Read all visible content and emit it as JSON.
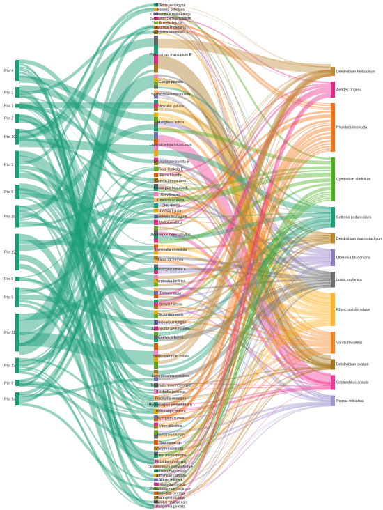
{
  "diagram": {
    "type": "sankey",
    "colors": {
      "plot": "#1b9e77",
      "link_default": "#1b9e77",
      "link_palette": [
        "#1b9e77",
        "#e6ab02",
        "#7570b3",
        "#e7298a",
        "#66a61e",
        "#d95f02",
        "#a6761d",
        "#666666",
        "#f781bf",
        "#fdae61"
      ]
    },
    "plots": [
      {
        "label": "Plot 4",
        "size": 3.2
      },
      {
        "label": "Plot 3",
        "size": 1.6
      },
      {
        "label": "Plot 1",
        "size": 0.6
      },
      {
        "label": "Plot 2",
        "size": 1.3
      },
      {
        "label": "Plot 10",
        "size": 2.4
      },
      {
        "label": "Plot 7",
        "size": 4.2
      },
      {
        "label": "Plot 6",
        "size": 2.2
      },
      {
        "label": "Plot 15",
        "size": 3.4
      },
      {
        "label": "Plot 12",
        "size": 5.6
      },
      {
        "label": "Plot 9",
        "size": 0.7
      },
      {
        "label": "Plot 5",
        "size": 3.0
      },
      {
        "label": "Plot 11",
        "size": 5.8
      },
      {
        "label": "Plot 13",
        "size": 2.4
      },
      {
        "label": "Plot 8",
        "size": 1.0
      },
      {
        "label": "Plot 14",
        "size": 2.0
      }
    ],
    "trees": [
      {
        "label": "Dillenia pentagyna",
        "size": 0.3
      },
      {
        "label": "Alstonia scholaris",
        "size": 0.3
      },
      {
        "label": "Chionanthus mala-elengi",
        "size": 0.3
      },
      {
        "label": "Syzygium caryophyllatum",
        "size": 0.3
      },
      {
        "label": "Bridelia retusa",
        "size": 0.3
      },
      {
        "label": "Agorosa lindleyana",
        "size": 0.3
      },
      {
        "label": "Holigarna arnottiana E",
        "size": 0.4
      },
      {
        "label": "Pterocarpus marsupium E",
        "size": 3.6
      },
      {
        "label": "Garuga pinnata",
        "size": 1.4
      },
      {
        "label": "Spathodea campanulata",
        "size": 0.8
      },
      {
        "label": "Sterculia guttata",
        "size": 1.1
      },
      {
        "label": "Mangifera indica",
        "size": 1.8
      },
      {
        "label": "Lagerstroemia microcarpa",
        "size": 2.3
      },
      {
        "label": "Terminalia paniculata E",
        "size": 0.7
      },
      {
        "label": "Ficus tsjakela E",
        "size": 0.5
      },
      {
        "label": "Ficus hispida",
        "size": 0.4
      },
      {
        "label": "Careya integerrima",
        "size": 0.4
      },
      {
        "label": "Artocarpus hirsutus E",
        "size": 0.7
      },
      {
        "label": "Grevillea sp.",
        "size": 0.4
      },
      {
        "label": "Gmelina arborea",
        "size": 0.4
      },
      {
        "label": "Olea dioica",
        "size": 0.4
      },
      {
        "label": "Cassia fistula",
        "size": 0.4
      },
      {
        "label": "Swietenia mahagoni",
        "size": 0.4
      },
      {
        "label": "Mallotus albus",
        "size": 0.5
      },
      {
        "label": "Artocarpus heterophyllus",
        "size": 1.6
      },
      {
        "label": "Terminalia crenulata",
        "size": 1.0
      },
      {
        "label": "Ficus racemosa",
        "size": 0.7
      },
      {
        "label": "Dalbergia latifolia E",
        "size": 0.9
      },
      {
        "label": "Terminalia bellirica",
        "size": 1.1
      },
      {
        "label": "Delonix regia",
        "size": 1.0
      },
      {
        "label": "Grewia tiliifolia",
        "size": 0.9
      },
      {
        "label": "Tectona grandis",
        "size": 0.8
      },
      {
        "label": "Dimocarpus longan",
        "size": 0.5
      },
      {
        "label": "Acronychia pedunculata",
        "size": 0.4
      },
      {
        "label": "Careya arborea",
        "size": 1.0
      },
      {
        "label": "Stereospermum colais",
        "size": 2.4
      },
      {
        "label": "Lagerstroemia speciosa",
        "size": 1.1
      },
      {
        "label": "Terminalia travancorensis",
        "size": 0.5
      },
      {
        "label": "Bischofia javanica",
        "size": 0.5
      },
      {
        "label": "Flacourtia montana",
        "size": 0.5
      },
      {
        "label": "Hydnocarpus pentandrus E",
        "size": 0.5
      },
      {
        "label": "Macaranga peltata",
        "size": 0.5
      },
      {
        "label": "Syzygium cumini",
        "size": 0.6
      },
      {
        "label": "Vitex altissima",
        "size": 0.6
      },
      {
        "label": "Samanea saman",
        "size": 0.8
      },
      {
        "label": "Saprosma sp.",
        "size": 0.5
      },
      {
        "label": "Erythrina stricta",
        "size": 0.4
      },
      {
        "label": "Butea monosperma",
        "size": 0.6
      },
      {
        "label": "Ficus benghalensis",
        "size": 0.4
      },
      {
        "label": "Cinnamomum malabatrum E",
        "size": 0.3
      },
      {
        "label": "Schleichera oleosa",
        "size": 0.3
      },
      {
        "label": "Terminalia catappa",
        "size": 0.3
      },
      {
        "label": "Albizia lebbeck",
        "size": 0.3
      },
      {
        "label": "Tamarindus indica",
        "size": 0.3
      },
      {
        "label": "Peltophorum pterocarpum",
        "size": 0.3
      },
      {
        "label": "Spondias pinnata",
        "size": 0.3
      },
      {
        "label": "Naringi crenulata",
        "size": 0.3
      },
      {
        "label": "Mallotus philippensis",
        "size": 0.3
      },
      {
        "label": "Pongamia pinnata",
        "size": 0.3
      }
    ],
    "orchids": [
      {
        "label": "Dendrobium herbaceum",
        "size": 1.5,
        "color": "#c08a3a"
      },
      {
        "label": "Aerides ringens",
        "size": 2.6,
        "color": "#e7298a"
      },
      {
        "label": "Pholidota imbricata",
        "size": 8.0,
        "color": "#f47216"
      },
      {
        "label": "Cymbidium aloifolium",
        "size": 7.2,
        "color": "#4daf22"
      },
      {
        "label": "Cottonia peduncularis",
        "size": 3.4,
        "color": "#1b9e77"
      },
      {
        "label": "Dendrobium macrostachyum",
        "size": 1.7,
        "color": "#b8862b"
      },
      {
        "label": "Oberonia brunoniana",
        "size": 2.8,
        "color": "#8e7cc3"
      },
      {
        "label": "Luisia zeylanica",
        "size": 2.6,
        "color": "#6e6e6e"
      },
      {
        "label": "Rhynchostylis retusa",
        "size": 5.4,
        "color": "#fdb42a"
      },
      {
        "label": "Vanda thwaitesii",
        "size": 3.6,
        "color": "#f58220"
      },
      {
        "label": "Dendrobium ovatum",
        "size": 1.7,
        "color": "#a6761d"
      },
      {
        "label": "Gastrochilus acaulis",
        "size": 2.4,
        "color": "#ee3a96"
      },
      {
        "label": "Porpax reticulata",
        "size": 1.8,
        "color": "#9f96d0"
      }
    ]
  }
}
